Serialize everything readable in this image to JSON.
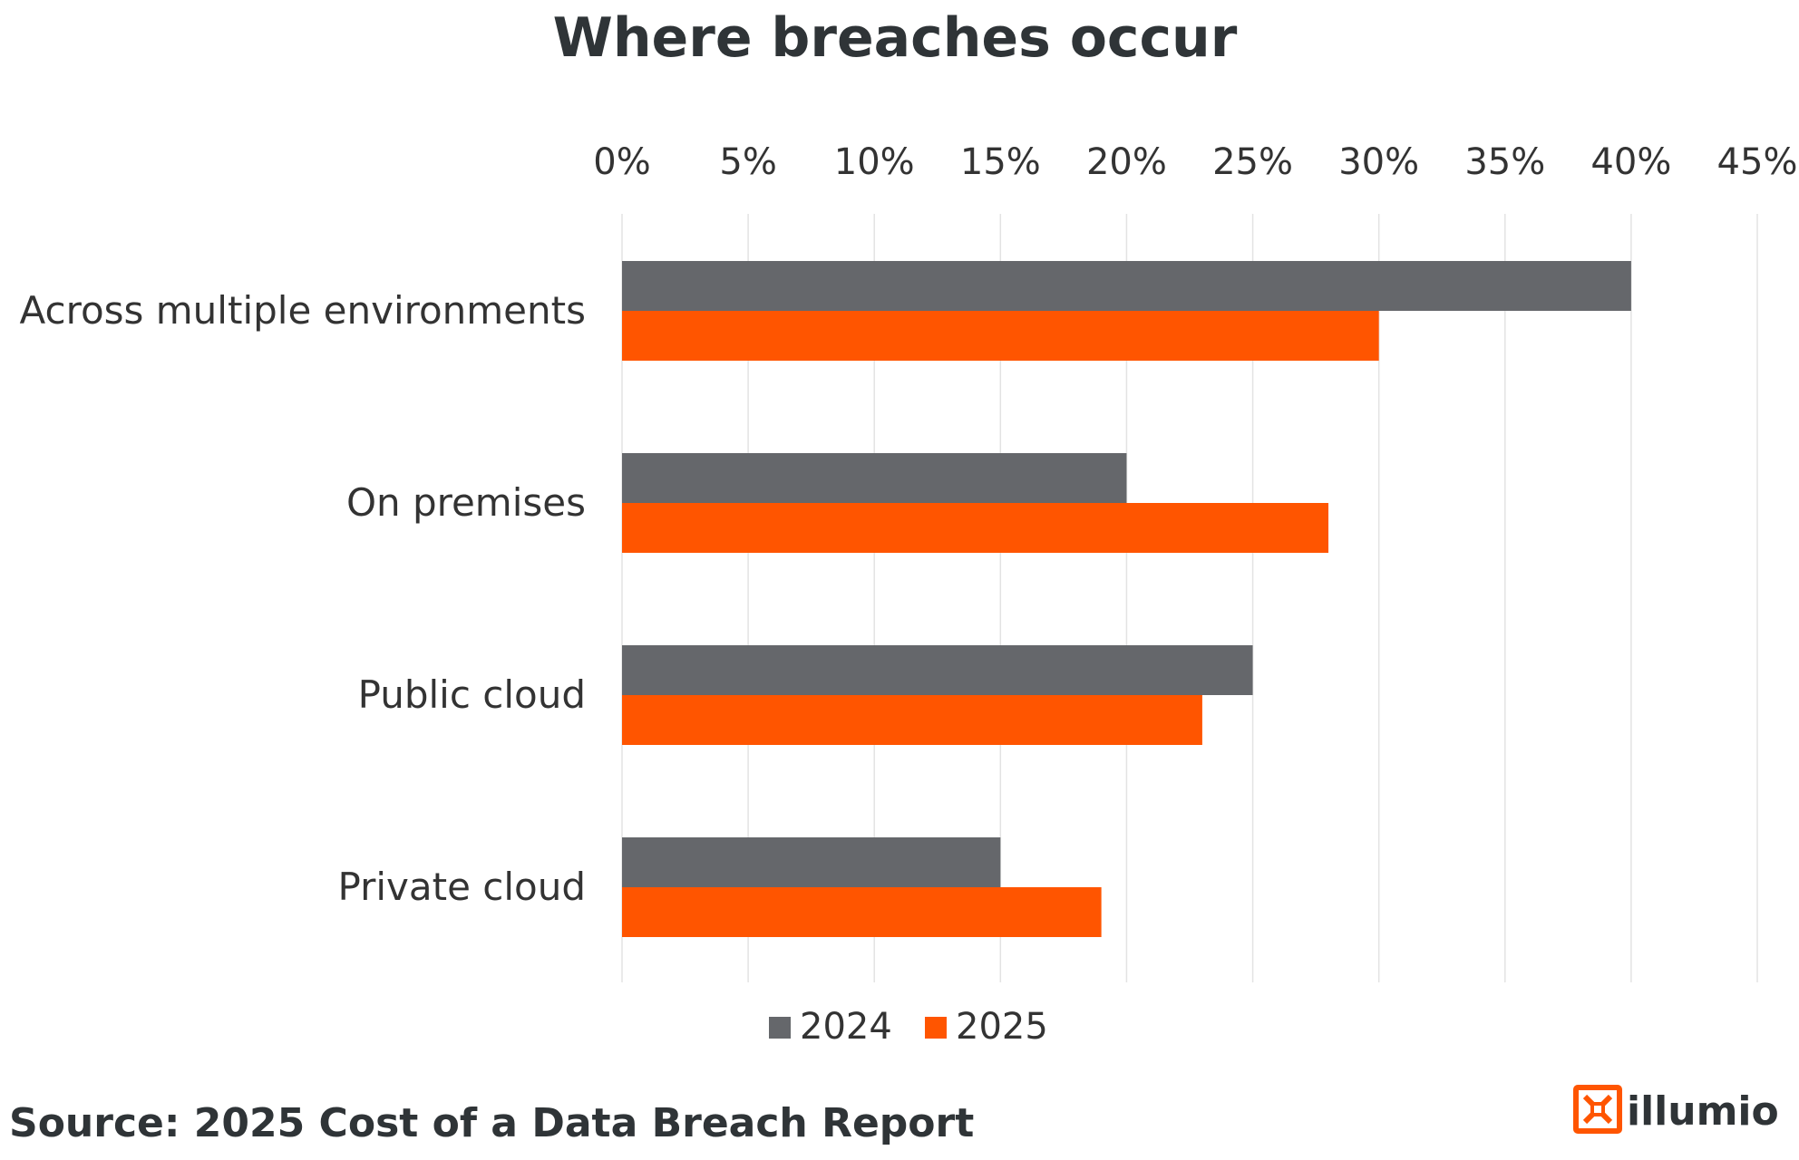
{
  "chart_data": {
    "type": "bar",
    "orientation": "horizontal",
    "title": "Where breaches occur",
    "categories": [
      "Across multiple environments",
      "On premises",
      "Public cloud",
      "Private cloud"
    ],
    "series": [
      {
        "name": "2024",
        "color": "#65676b",
        "values": [
          40,
          20,
          25,
          15
        ]
      },
      {
        "name": "2025",
        "color": "#ff5500",
        "values": [
          30,
          28,
          23,
          19
        ]
      }
    ],
    "x_ticks": [
      "0%",
      "5%",
      "10%",
      "15%",
      "20%",
      "25%",
      "30%",
      "35%",
      "40%",
      "45%"
    ],
    "xlim": [
      0,
      45
    ],
    "value_unit": "%",
    "grid": true,
    "axis_position": "top",
    "legend_position": "bottom"
  },
  "source_text": "Source: 2025 Cost of a Data Breach Report",
  "brand": {
    "name": "illumio",
    "logo_icon": "illumio-logo-icon",
    "accent_color": "#ff5500"
  }
}
